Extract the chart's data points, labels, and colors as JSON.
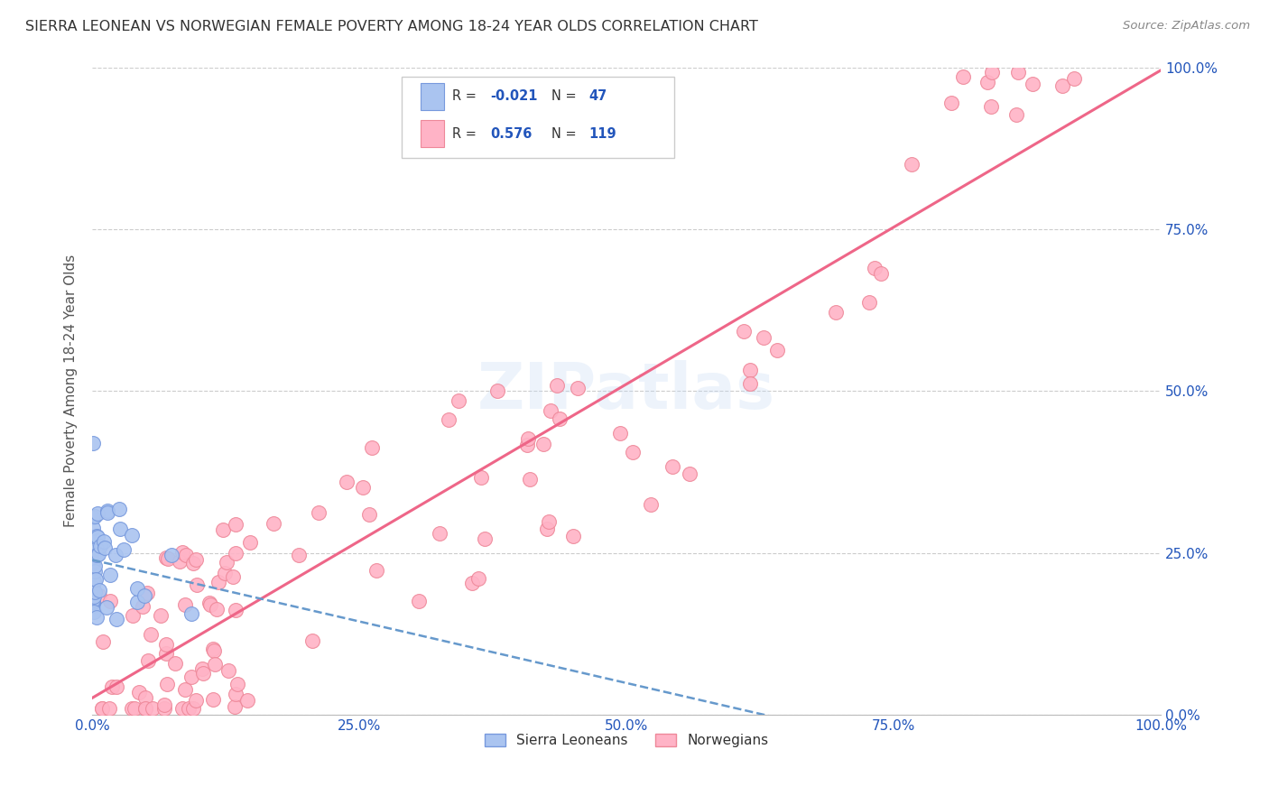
{
  "title": "SIERRA LEONEAN VS NORWEGIAN FEMALE POVERTY AMONG 18-24 YEAR OLDS CORRELATION CHART",
  "source": "Source: ZipAtlas.com",
  "ylabel": "Female Poverty Among 18-24 Year Olds",
  "sl_color": "#aac4f0",
  "sl_edge_color": "#7799dd",
  "no_color": "#ffb3c6",
  "no_edge_color": "#ee8899",
  "sl_R": -0.021,
  "sl_N": 47,
  "no_R": 0.576,
  "no_N": 119,
  "sl_line_color": "#6699cc",
  "no_line_color": "#ee6688",
  "watermark": "ZIPatlas",
  "background_color": "#ffffff",
  "grid_color": "#cccccc",
  "title_color": "#333333",
  "axis_color": "#2255bb",
  "axis_label_color": "#555555"
}
